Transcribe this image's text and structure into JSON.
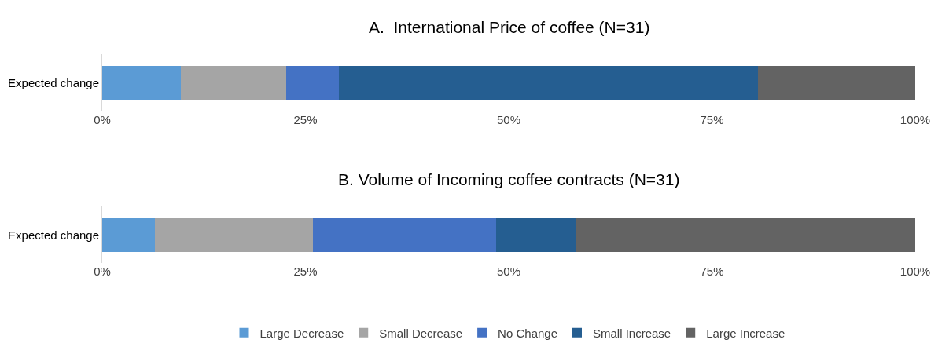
{
  "chart_data": [
    {
      "type": "bar",
      "title": "A.  International Price of coffee (N=31)",
      "orientation": "horizontal",
      "stacked": true,
      "categories": [
        "Expected change"
      ],
      "xlim": [
        0,
        100
      ],
      "xticks": [
        {
          "value": 0,
          "label": "0%"
        },
        {
          "value": 25,
          "label": "25%"
        },
        {
          "value": 50,
          "label": "50%"
        },
        {
          "value": 75,
          "label": "75%"
        },
        {
          "value": 100,
          "label": "100%"
        }
      ],
      "grid": false,
      "legend": "bottom",
      "series": [
        {
          "name": "Large Decrease",
          "color": "#5b9bd5",
          "values": [
            9.7
          ]
        },
        {
          "name": "Small Decrease",
          "color": "#a5a5a5",
          "values": [
            12.9
          ]
        },
        {
          "name": "No Change",
          "color": "#4472c4",
          "values": [
            6.5
          ]
        },
        {
          "name": "Small Increase",
          "color": "#255e91",
          "values": [
            51.6
          ]
        },
        {
          "name": "Large Increase",
          "color": "#636363",
          "values": [
            19.3
          ]
        }
      ]
    },
    {
      "type": "bar",
      "title": "B. Volume of Incoming coffee contracts (N=31)",
      "orientation": "horizontal",
      "stacked": true,
      "categories": [
        "Expected change"
      ],
      "xlim": [
        0,
        100
      ],
      "xticks": [
        {
          "value": 0,
          "label": "0%"
        },
        {
          "value": 25,
          "label": "25%"
        },
        {
          "value": 50,
          "label": "50%"
        },
        {
          "value": 75,
          "label": "75%"
        },
        {
          "value": 100,
          "label": "100%"
        }
      ],
      "grid": false,
      "series": [
        {
          "color": "#5b9bd5",
          "values": [
            6.5
          ]
        },
        {
          "color": "#a5a5a5",
          "values": [
            19.4
          ]
        },
        {
          "color": "#4472c4",
          "values": [
            22.6
          ]
        },
        {
          "color": "#255e91",
          "values": [
            9.7
          ]
        },
        {
          "color": "#636363",
          "values": [
            41.8
          ]
        }
      ]
    }
  ]
}
